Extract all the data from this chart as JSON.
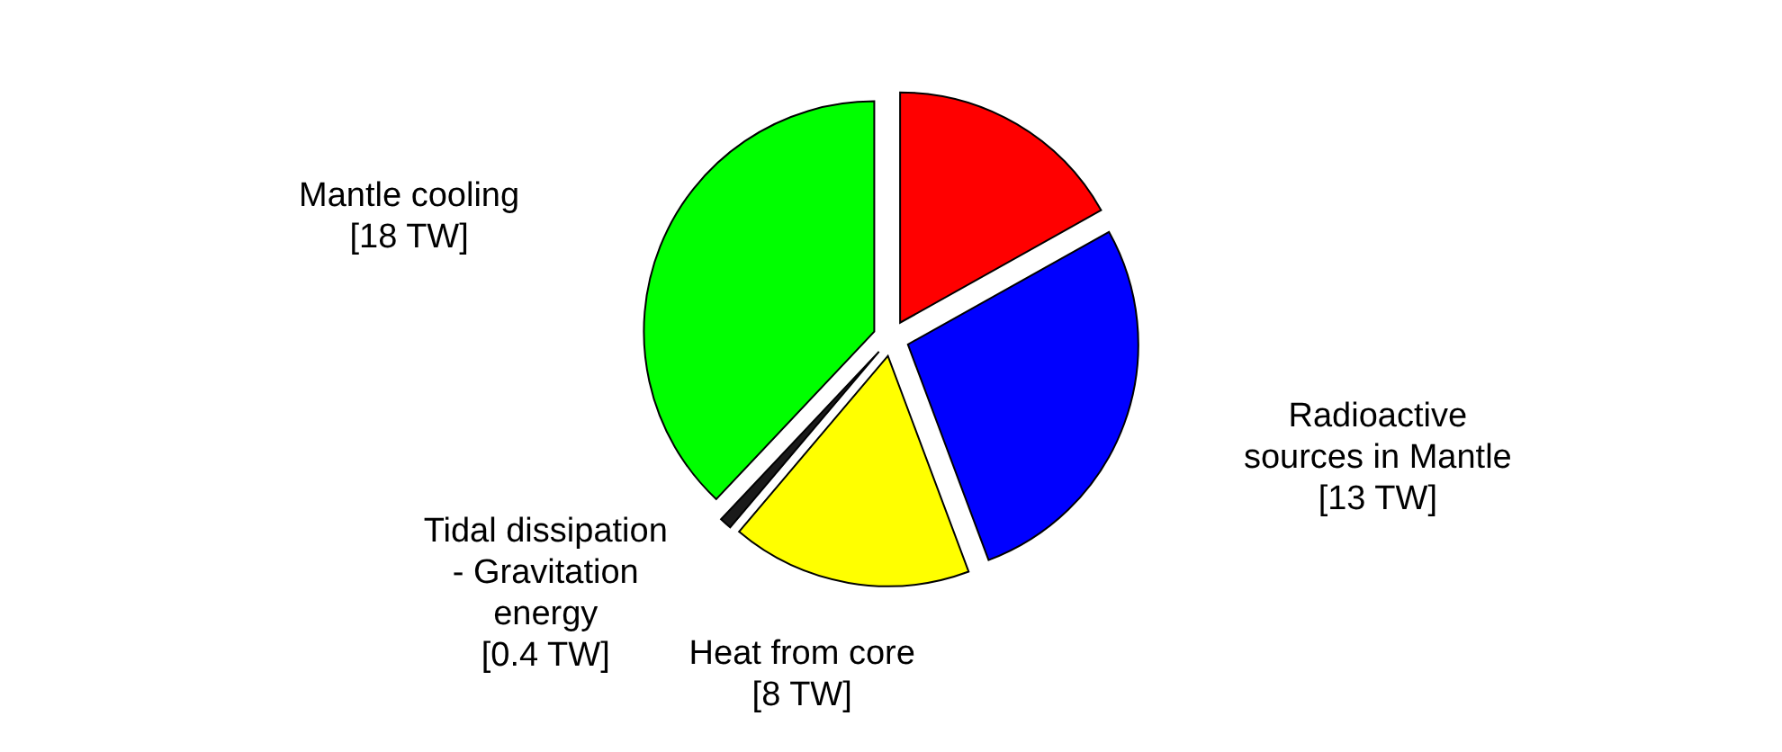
{
  "chart_data": {
    "type": "pie",
    "categories": [
      null,
      "Radioactive sources in Mantle",
      "Heat from core",
      "Tidal dissipation - Gravitation energy",
      "Mantle cooling"
    ],
    "values": [
      8,
      13,
      8,
      0.4,
      18
    ],
    "colors": [
      "#ff0000",
      "#0000ff",
      "#ffff00",
      "#1a1a1a",
      "#00ff00"
    ],
    "value_labels": [
      null,
      "[13 TW]",
      "[8 TW]",
      "[0.4 TW]",
      "[18 TW]"
    ]
  }
}
